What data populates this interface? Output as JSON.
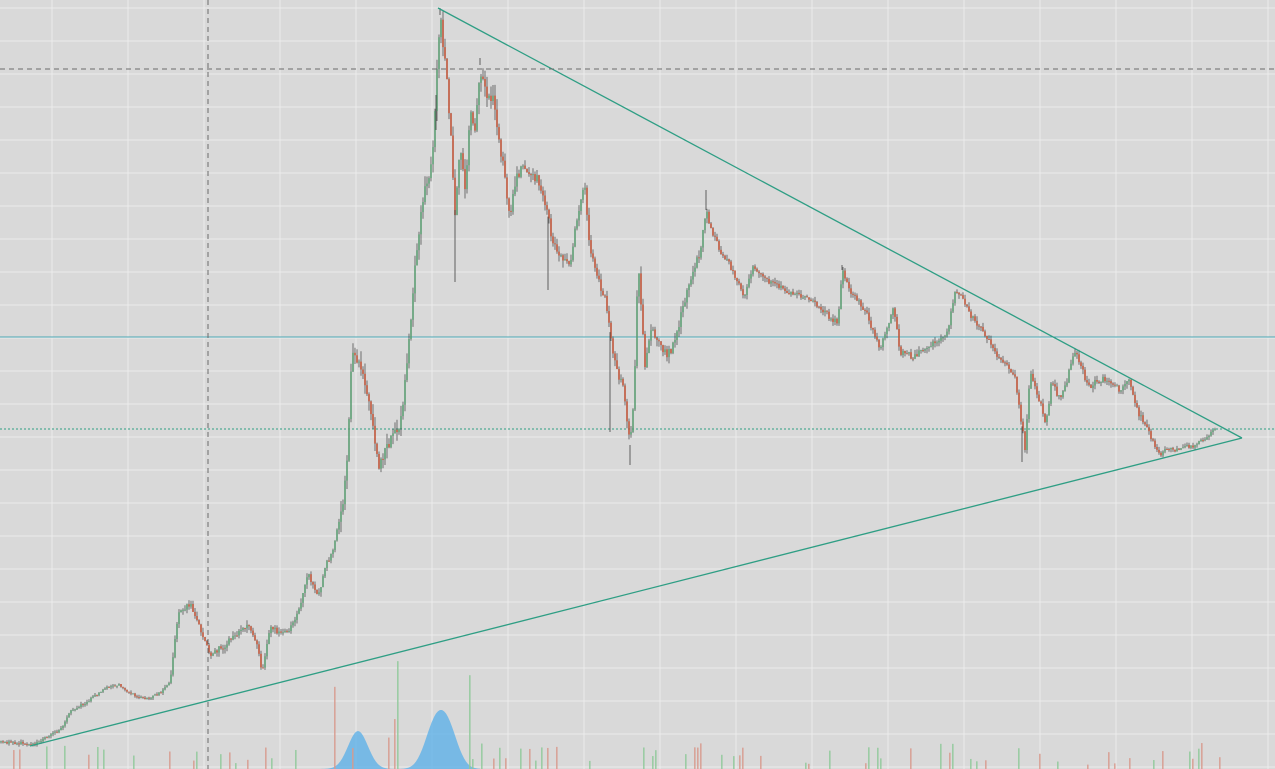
{
  "chart_data": {
    "type": "candlestick",
    "title": "",
    "xlabel": "",
    "ylabel": "",
    "axis_labels_visible": false,
    "grid": true,
    "y_scale": "linear",
    "colors": {
      "background": "#d9d9d9",
      "grid": "#ececec",
      "up": "#5e9e74",
      "down": "#c0573a",
      "trendline": "#2e9e84",
      "horizontal_line": "#4aa6b3",
      "crosshair": "#6b6b6b",
      "volume_area": "#55aee8",
      "volume_up": "#8fc99a",
      "volume_down": "#d79a8d"
    },
    "price_path_anchors": [
      [
        0,
        742
      ],
      [
        35,
        744
      ],
      [
        60,
        730
      ],
      [
        70,
        712
      ],
      [
        90,
        700
      ],
      [
        105,
        688
      ],
      [
        120,
        685
      ],
      [
        130,
        693
      ],
      [
        145,
        700
      ],
      [
        160,
        693
      ],
      [
        170,
        682
      ],
      [
        178,
        615
      ],
      [
        190,
        603
      ],
      [
        200,
        628
      ],
      [
        210,
        655
      ],
      [
        225,
        645
      ],
      [
        240,
        630
      ],
      [
        250,
        625
      ],
      [
        258,
        650
      ],
      [
        262,
        672
      ],
      [
        270,
        628
      ],
      [
        280,
        633
      ],
      [
        290,
        628
      ],
      [
        300,
        608
      ],
      [
        308,
        572
      ],
      [
        318,
        598
      ],
      [
        325,
        568
      ],
      [
        333,
        548
      ],
      [
        342,
        510
      ],
      [
        348,
        445
      ],
      [
        352,
        348
      ],
      [
        357,
        358
      ],
      [
        362,
        370
      ],
      [
        366,
        392
      ],
      [
        372,
        412
      ],
      [
        378,
        465
      ],
      [
        385,
        450
      ],
      [
        392,
        440
      ],
      [
        400,
        425
      ],
      [
        406,
        378
      ],
      [
        410,
        330
      ],
      [
        414,
        280
      ],
      [
        420,
        225
      ],
      [
        426,
        185
      ],
      [
        432,
        160
      ],
      [
        436,
        95
      ],
      [
        440,
        15
      ],
      [
        445,
        60
      ],
      [
        450,
        122
      ],
      [
        455,
        210
      ],
      [
        460,
        145
      ],
      [
        465,
        195
      ],
      [
        470,
        115
      ],
      [
        475,
        132
      ],
      [
        480,
        65
      ],
      [
        486,
        98
      ],
      [
        492,
        95
      ],
      [
        498,
        130
      ],
      [
        504,
        172
      ],
      [
        510,
        220
      ],
      [
        515,
        185
      ],
      [
        522,
        160
      ],
      [
        530,
        175
      ],
      [
        538,
        180
      ],
      [
        546,
        205
      ],
      [
        552,
        240
      ],
      [
        560,
        255
      ],
      [
        570,
        262
      ],
      [
        578,
        215
      ],
      [
        584,
        180
      ],
      [
        590,
        248
      ],
      [
        598,
        278
      ],
      [
        605,
        300
      ],
      [
        612,
        345
      ],
      [
        618,
        375
      ],
      [
        624,
        390
      ],
      [
        630,
        445
      ],
      [
        634,
        402
      ],
      [
        638,
        262
      ],
      [
        645,
        365
      ],
      [
        652,
        328
      ],
      [
        660,
        345
      ],
      [
        668,
        355
      ],
      [
        676,
        340
      ],
      [
        684,
        302
      ],
      [
        692,
        275
      ],
      [
        700,
        252
      ],
      [
        706,
        210
      ],
      [
        712,
        232
      ],
      [
        720,
        250
      ],
      [
        728,
        262
      ],
      [
        736,
        280
      ],
      [
        744,
        296
      ],
      [
        752,
        268
      ],
      [
        760,
        272
      ],
      [
        770,
        283
      ],
      [
        780,
        288
      ],
      [
        790,
        292
      ],
      [
        800,
        296
      ],
      [
        810,
        300
      ],
      [
        820,
        306
      ],
      [
        830,
        318
      ],
      [
        838,
        322
      ],
      [
        842,
        270
      ],
      [
        850,
        292
      ],
      [
        858,
        300
      ],
      [
        866,
        312
      ],
      [
        874,
        335
      ],
      [
        880,
        350
      ],
      [
        888,
        325
      ],
      [
        894,
        306
      ],
      [
        900,
        355
      ],
      [
        906,
        350
      ],
      [
        912,
        358
      ],
      [
        920,
        352
      ],
      [
        930,
        345
      ],
      [
        940,
        340
      ],
      [
        948,
        330
      ],
      [
        955,
        293
      ],
      [
        962,
        298
      ],
      [
        970,
        315
      ],
      [
        980,
        328
      ],
      [
        990,
        340
      ],
      [
        1000,
        360
      ],
      [
        1008,
        368
      ],
      [
        1015,
        378
      ],
      [
        1020,
        412
      ],
      [
        1025,
        448
      ],
      [
        1030,
        372
      ],
      [
        1038,
        395
      ],
      [
        1046,
        425
      ],
      [
        1052,
        378
      ],
      [
        1058,
        400
      ],
      [
        1066,
        385
      ],
      [
        1074,
        350
      ],
      [
        1080,
        362
      ],
      [
        1088,
        388
      ],
      [
        1096,
        382
      ],
      [
        1104,
        378
      ],
      [
        1112,
        385
      ],
      [
        1120,
        390
      ],
      [
        1128,
        378
      ],
      [
        1136,
        408
      ],
      [
        1145,
        425
      ],
      [
        1152,
        440
      ],
      [
        1160,
        455
      ],
      [
        1168,
        448
      ],
      [
        1176,
        450
      ],
      [
        1184,
        445
      ],
      [
        1192,
        447
      ],
      [
        1200,
        440
      ],
      [
        1206,
        438
      ],
      [
        1212,
        432
      ],
      [
        1216,
        428
      ]
    ],
    "trendlines": [
      {
        "name": "resistance",
        "from": [
          438,
          8
        ],
        "to": [
          1242,
          438
        ]
      },
      {
        "name": "support",
        "from": [
          30,
          746
        ],
        "to": [
          1242,
          438
        ]
      }
    ],
    "horizontal_lines": [
      {
        "name": "level",
        "y": 337,
        "style": "solid"
      }
    ],
    "crosshair": {
      "x": 208,
      "y": 69
    },
    "price_marker_y": 429,
    "volume_hump_centers": [
      358,
      434,
      448
    ]
  }
}
